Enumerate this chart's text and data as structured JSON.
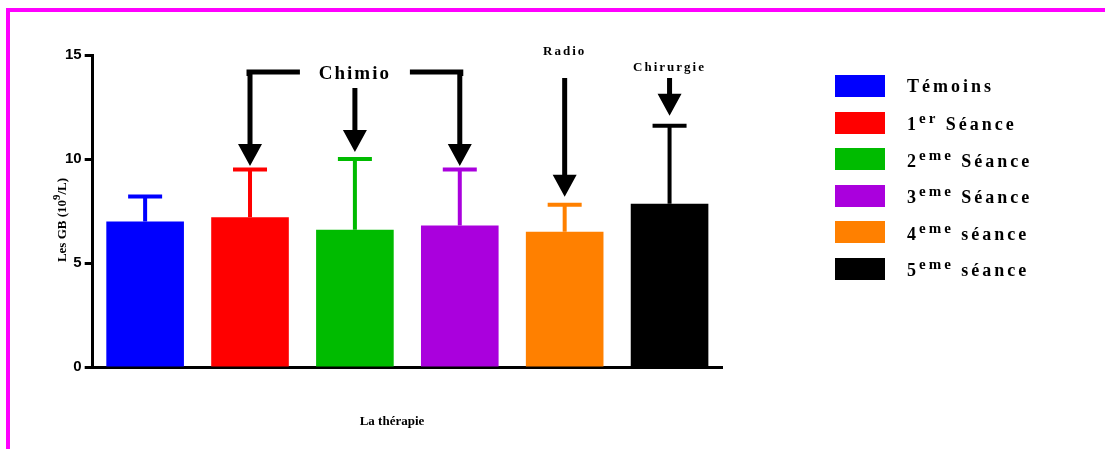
{
  "chart_data": {
    "type": "bar",
    "xlabel": "La thérapie",
    "ylabel": "Les GB (10$^{9}$/L)",
    "categories": [
      null,
      null,
      null,
      null,
      null,
      null
    ],
    "series": [
      {
        "name": "Témoins",
        "color": "#0000ff",
        "values": [
          7.0,
          null,
          null,
          null,
          null,
          null
        ],
        "errors": [
          [
            7.0,
            8.2
          ],
          null,
          null,
          null,
          null,
          null
        ]
      },
      {
        "name": "1$^{er}$ Séance",
        "color": "#ff0000",
        "values": [
          null,
          7.2,
          null,
          null,
          null,
          null
        ],
        "errors": [
          null,
          [
            7.2,
            9.5
          ],
          null,
          null,
          null,
          null
        ]
      },
      {
        "name": "2$^{eme}$ Séance",
        "color": "#00bb00",
        "values": [
          null,
          null,
          6.6,
          null,
          null,
          null
        ],
        "errors": [
          null,
          null,
          [
            6.6,
            10.0
          ],
          null,
          null,
          null
        ]
      },
      {
        "name": "3$^{eme}$ Séance",
        "color": "#aa00dd",
        "values": [
          null,
          null,
          null,
          6.8,
          null,
          null
        ],
        "errors": [
          null,
          null,
          null,
          [
            6.8,
            9.5
          ],
          null,
          null
        ]
      },
      {
        "name": "4$^{eme}$ séance",
        "color": "#ff8000",
        "values": [
          null,
          null,
          null,
          null,
          6.5,
          null
        ],
        "errors": [
          null,
          null,
          null,
          null,
          [
            6.5,
            7.8
          ],
          null
        ]
      },
      {
        "name": "5$^{eme}$ séance",
        "color": "#000000",
        "values": [
          null,
          null,
          null,
          null,
          null,
          7.85
        ],
        "errors": [
          null,
          null,
          null,
          null,
          null,
          [
            7.85,
            11.6
          ]
        ]
      }
    ],
    "ylim": [
      0,
      15
    ],
    "yticks": [
      0,
      5,
      10,
      15
    ],
    "grid": false,
    "legend": "right",
    "annotations": [
      "Chimio",
      "Radio",
      "Chirurgie"
    ]
  }
}
